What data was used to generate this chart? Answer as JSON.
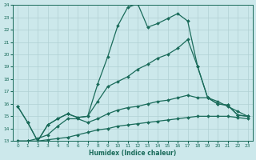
{
  "xlabel": "Humidex (Indice chaleur)",
  "x_ticks": [
    0,
    1,
    2,
    3,
    4,
    5,
    6,
    7,
    8,
    9,
    10,
    11,
    12,
    13,
    14,
    15,
    16,
    17,
    18,
    19,
    20,
    21,
    22,
    23
  ],
  "ylim": [
    13,
    24
  ],
  "yticks": [
    13,
    14,
    15,
    16,
    17,
    18,
    19,
    20,
    21,
    22,
    23,
    24
  ],
  "xlim": [
    -0.5,
    23.5
  ],
  "bg_color": "#cce8eb",
  "line_color": "#1a6b5a",
  "grid_color": "#b0d0d4",
  "line1": [
    15.8,
    14.5,
    13.0,
    14.3,
    14.8,
    15.2,
    14.9,
    15.0,
    17.6,
    19.8,
    22.3,
    23.8,
    24.1,
    22.2,
    22.5,
    22.9,
    23.3,
    22.7,
    19.0,
    16.5,
    16.0,
    15.9,
    15.1,
    15.0
  ],
  "line2": [
    15.8,
    14.5,
    13.0,
    14.3,
    14.8,
    15.2,
    14.9,
    15.0,
    16.2,
    17.4,
    17.8,
    18.2,
    18.8,
    19.2,
    19.7,
    20.0,
    20.5,
    21.2,
    19.0,
    16.5,
    16.0,
    15.9,
    15.1,
    15.0
  ],
  "line3": [
    13.0,
    13.0,
    13.2,
    13.5,
    14.2,
    14.8,
    14.8,
    14.5,
    14.8,
    15.2,
    15.5,
    15.7,
    15.8,
    16.0,
    16.2,
    16.3,
    16.5,
    16.7,
    16.5,
    16.5,
    16.2,
    15.8,
    15.4,
    15.0
  ],
  "line4": [
    13.0,
    13.0,
    13.0,
    13.1,
    13.2,
    13.3,
    13.5,
    13.7,
    13.9,
    14.0,
    14.2,
    14.3,
    14.4,
    14.5,
    14.6,
    14.7,
    14.8,
    14.9,
    15.0,
    15.0,
    15.0,
    15.0,
    14.9,
    14.8
  ]
}
